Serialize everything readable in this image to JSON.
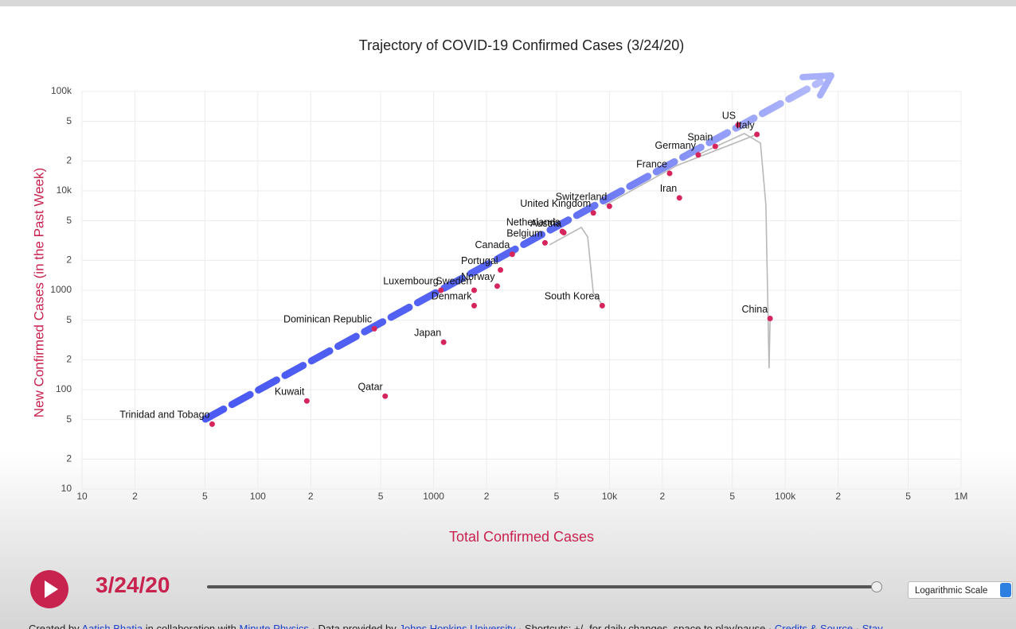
{
  "chart_data": {
    "type": "scatter",
    "title": "Trajectory of COVID-19 Confirmed Cases (3/24/20)",
    "xlabel": "Total Confirmed Cases",
    "ylabel": "New Confirmed Cases (in the Past Week)",
    "xscale": "log",
    "yscale": "log",
    "grid": true,
    "xlim": [
      10,
      1000000
    ],
    "ylim": [
      10,
      100000
    ],
    "xticks": [
      10,
      {
        "value": 20,
        "label": "2"
      },
      {
        "value": 50,
        "label": "5"
      },
      100,
      {
        "value": 200,
        "label": "2"
      },
      {
        "value": 500,
        "label": "5"
      },
      1000,
      {
        "value": 2000,
        "label": "2"
      },
      {
        "value": 5000,
        "label": "5"
      },
      {
        "value": 10000,
        "label": "10k"
      },
      {
        "value": 20000,
        "label": "2"
      },
      {
        "value": 50000,
        "label": "5"
      },
      {
        "value": 100000,
        "label": "100k"
      },
      {
        "value": 200000,
        "label": "2"
      },
      {
        "value": 500000,
        "label": "5"
      },
      {
        "value": 1000000,
        "label": "1M"
      }
    ],
    "yticks": [
      10,
      {
        "value": 20,
        "label": "2"
      },
      {
        "value": 50,
        "label": "5"
      },
      100,
      {
        "value": 200,
        "label": "2"
      },
      {
        "value": 500,
        "label": "5"
      },
      1000,
      {
        "value": 2000,
        "label": "2"
      },
      {
        "value": 5000,
        "label": "5"
      },
      {
        "value": 10000,
        "label": "10k"
      },
      {
        "value": 20000,
        "label": "2"
      },
      {
        "value": 50000,
        "label": "5"
      },
      {
        "value": 100000,
        "label": "100k"
      }
    ],
    "color": "#d6255c",
    "line_color": "#b8b8b8",
    "points": [
      {
        "label": "US",
        "x": 54000,
        "y": 46000
      },
      {
        "label": "Italy",
        "x": 69000,
        "y": 37000
      },
      {
        "label": "Spain",
        "x": 40000,
        "y": 28000
      },
      {
        "label": "Germany",
        "x": 32000,
        "y": 23000
      },
      {
        "label": "France",
        "x": 22000,
        "y": 15000
      },
      {
        "label": "Iran",
        "x": 25000,
        "y": 8500
      },
      {
        "label": "Switzerland",
        "x": 10000,
        "y": 7000
      },
      {
        "label": "United Kingdom",
        "x": 8100,
        "y": 6000
      },
      {
        "label": "Netherlands",
        "x": 5400,
        "y": 3900
      },
      {
        "label": "Austria",
        "x": 5500,
        "y": 3800
      },
      {
        "label": "Belgium",
        "x": 4300,
        "y": 3000
      },
      {
        "label": "Canada",
        "x": 2800,
        "y": 2300
      },
      {
        "label": "Portugal",
        "x": 2400,
        "y": 1600
      },
      {
        "label": "Norway",
        "x": 2300,
        "y": 1100
      },
      {
        "label": "Sweden",
        "x": 1700,
        "y": 1000
      },
      {
        "label": "Luxembourg",
        "x": 1100,
        "y": 1000
      },
      {
        "label": "Denmark",
        "x": 1700,
        "y": 700
      },
      {
        "label": "South Korea",
        "x": 9100,
        "y": 700
      },
      {
        "label": "China",
        "x": 82000,
        "y": 520
      },
      {
        "label": "Japan",
        "x": 1140,
        "y": 300
      },
      {
        "label": "Dominican Republic",
        "x": 460,
        "y": 410
      },
      {
        "label": "Qatar",
        "x": 530,
        "y": 86
      },
      {
        "label": "Kuwait",
        "x": 190,
        "y": 77
      },
      {
        "label": "Trinidad and Tobago",
        "x": 55,
        "y": 45
      }
    ],
    "trajectories": [
      {
        "x": [
          33000,
          58600,
          72300,
          77600,
          80900,
          82000
        ],
        "y": [
          23800,
          37700,
          30200,
          7200,
          164,
          520
        ]
      },
      {
        "x": [
          4560,
          6920,
          7520,
          8090,
          9160
        ],
        "y": [
          2860,
          4290,
          3440,
          946,
          705
        ]
      },
      {
        "x": [
          9460,
          24200,
          47600,
          69000
        ],
        "y": [
          7180,
          18000,
          28600,
          37000
        ]
      }
    ]
  },
  "controls": {
    "date": "3/24/20",
    "scale_select": "Logarithmic Scale"
  },
  "footer": {
    "parts": [
      "Created by ",
      " in collaboration with ",
      " · Data provided by ",
      " · Shortcuts: +/- for daily changes, space to play/pause · ",
      " · "
    ],
    "links": [
      "Aatish Bhatia",
      "Minute Physics",
      "Johns Hopkins University",
      "Credits & Source",
      "Stay"
    ]
  }
}
